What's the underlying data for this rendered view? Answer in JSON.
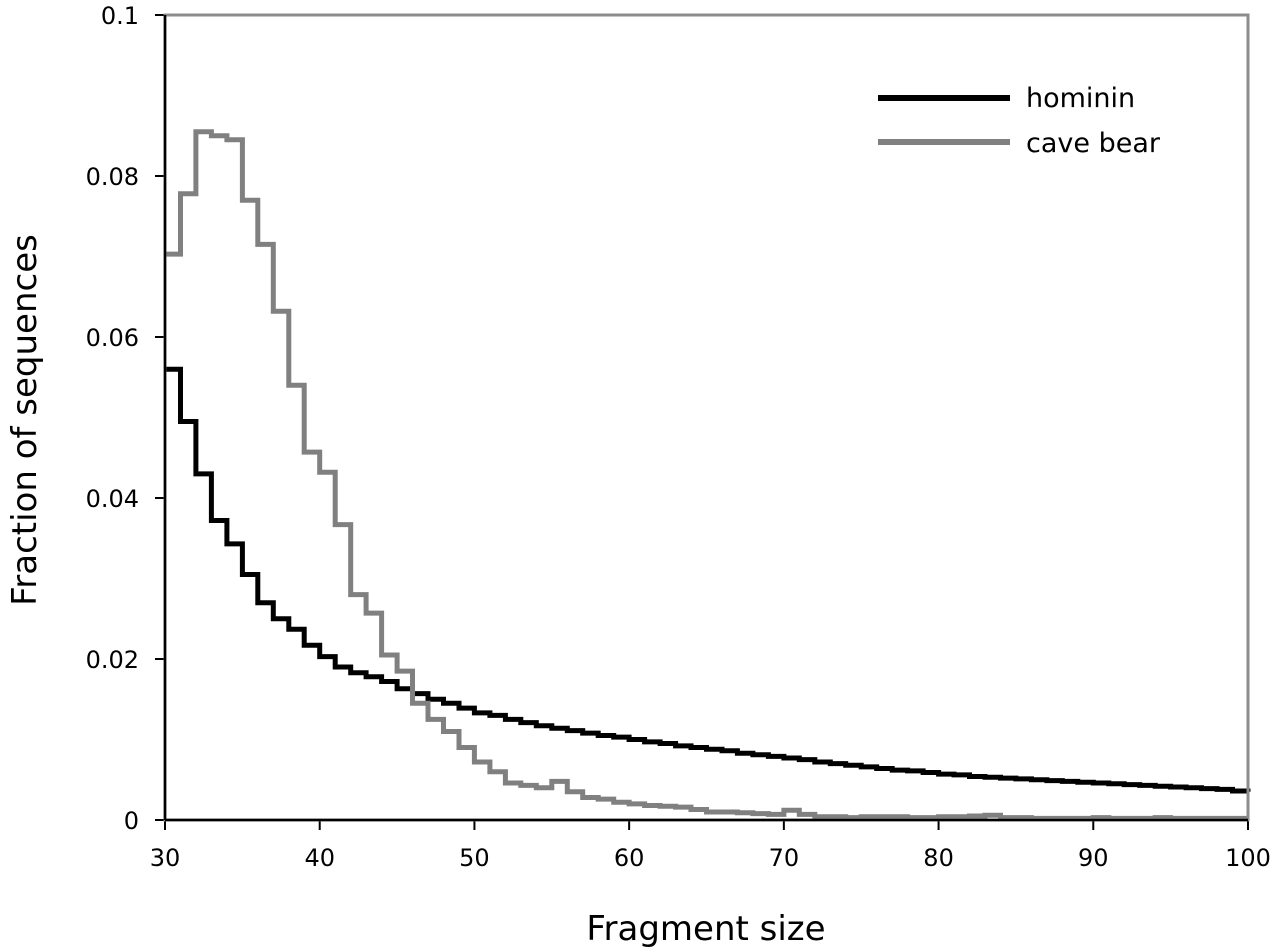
{
  "chart_data": {
    "type": "line",
    "step": true,
    "title": "",
    "xlabel": "Fragment size",
    "ylabel": "Fraction of sequences",
    "xlim": [
      30,
      100
    ],
    "ylim": [
      0,
      0.1
    ],
    "xticks": [
      30,
      40,
      50,
      60,
      70,
      80,
      90,
      100
    ],
    "xtick_labels": [
      "30",
      "40",
      "50",
      "60",
      "70",
      "80",
      "90",
      "100"
    ],
    "yticks": [
      0,
      0.02,
      0.04,
      0.06,
      0.08,
      0.1
    ],
    "ytick_labels": [
      "0",
      "0.02",
      "0.04",
      "0.06",
      "0.08",
      "0.1"
    ],
    "grid": false,
    "legend_position": "top-right",
    "x": [
      30,
      31,
      32,
      33,
      34,
      35,
      36,
      37,
      38,
      39,
      40,
      41,
      42,
      43,
      44,
      45,
      46,
      47,
      48,
      49,
      50,
      51,
      52,
      53,
      54,
      55,
      56,
      57,
      58,
      59,
      60,
      61,
      62,
      63,
      64,
      65,
      66,
      67,
      68,
      69,
      70,
      71,
      72,
      73,
      74,
      75,
      76,
      77,
      78,
      79,
      80,
      81,
      82,
      83,
      84,
      85,
      86,
      87,
      88,
      89,
      90,
      91,
      92,
      93,
      94,
      95,
      96,
      97,
      98,
      99,
      100
    ],
    "series": [
      {
        "name": "hominin",
        "color": "#000000",
        "values": [
          0.056,
          0.0495,
          0.043,
          0.0372,
          0.0343,
          0.0305,
          0.027,
          0.025,
          0.0237,
          0.0217,
          0.0203,
          0.019,
          0.0183,
          0.0178,
          0.0172,
          0.0163,
          0.0157,
          0.015,
          0.0145,
          0.0139,
          0.0133,
          0.013,
          0.0125,
          0.0121,
          0.0117,
          0.0114,
          0.0111,
          0.0108,
          0.0105,
          0.0103,
          0.01,
          0.0097,
          0.0095,
          0.0092,
          0.009,
          0.0088,
          0.0086,
          0.0083,
          0.0081,
          0.0079,
          0.0077,
          0.0075,
          0.0072,
          0.007,
          0.0068,
          0.0066,
          0.0064,
          0.0062,
          0.0061,
          0.0059,
          0.0057,
          0.0056,
          0.0054,
          0.0053,
          0.0052,
          0.0051,
          0.005,
          0.0049,
          0.0048,
          0.0047,
          0.0046,
          0.0045,
          0.0044,
          0.0043,
          0.0042,
          0.0041,
          0.004,
          0.0039,
          0.0038,
          0.0036,
          0.0035
        ]
      },
      {
        "name": "cave bear",
        "color": "#808080",
        "values": [
          0.0703,
          0.0778,
          0.0855,
          0.085,
          0.0845,
          0.077,
          0.0715,
          0.0632,
          0.054,
          0.0457,
          0.0432,
          0.0367,
          0.028,
          0.0257,
          0.0205,
          0.0185,
          0.0145,
          0.0125,
          0.011,
          0.009,
          0.0072,
          0.006,
          0.0046,
          0.0043,
          0.004,
          0.0048,
          0.0035,
          0.0028,
          0.0026,
          0.0022,
          0.002,
          0.0018,
          0.0017,
          0.0016,
          0.0013,
          0.001,
          0.001,
          0.0009,
          0.0008,
          0.0007,
          0.0012,
          0.0007,
          0.0004,
          0.0004,
          0.0003,
          0.0004,
          0.0004,
          0.0004,
          0.0003,
          0.0003,
          0.0004,
          0.0004,
          0.0005,
          0.0006,
          0.0003,
          0.0003,
          0.0002,
          0.0002,
          0.0002,
          0.0002,
          0.0003,
          0.0002,
          0.0002,
          0.0002,
          0.0003,
          0.0002,
          0.0002,
          0.0002,
          0.0002,
          0.0002,
          0.0002
        ]
      }
    ]
  }
}
